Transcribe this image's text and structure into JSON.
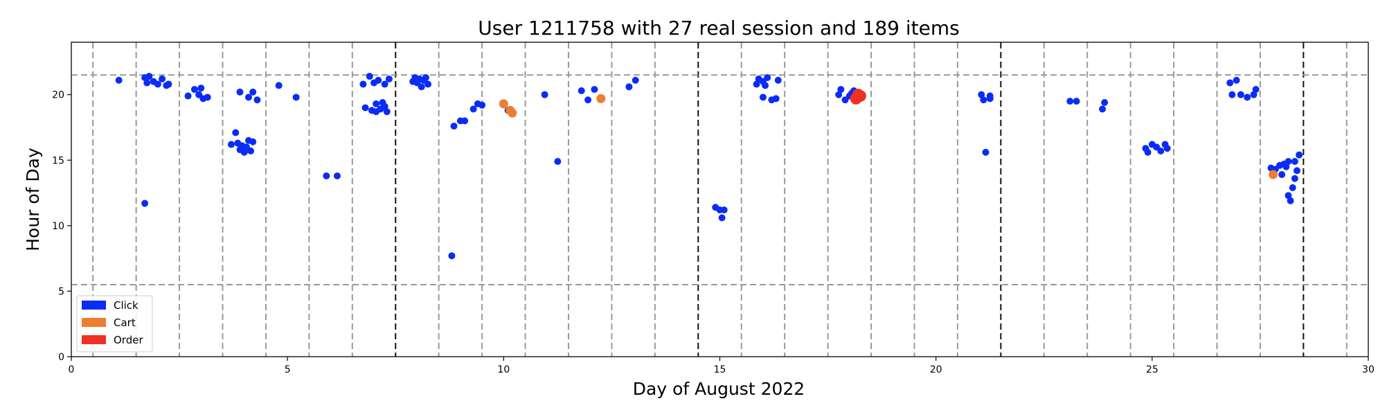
{
  "chart_data": {
    "type": "scatter",
    "title": "User 1211758 with 27 real session and 189 items",
    "xlabel": "Day of August 2022",
    "ylabel": "Hour of Day",
    "xlim": [
      0,
      30
    ],
    "ylim": [
      0,
      24
    ],
    "xticks": [
      0,
      5,
      10,
      15,
      20,
      25,
      30
    ],
    "yticks": [
      0,
      5,
      10,
      15,
      20
    ],
    "grid": false,
    "legend_position": "bottom-left",
    "day_separators": [
      0.5,
      1.5,
      2.5,
      3.5,
      4.5,
      5.5,
      6.5,
      7.5,
      8.5,
      9.5,
      10.5,
      11.5,
      12.5,
      13.5,
      14.5,
      15.5,
      16.5,
      17.5,
      18.5,
      19.5,
      20.5,
      21.5,
      22.5,
      23.5,
      24.5,
      25.5,
      26.5,
      27.5,
      28.5,
      29.5
    ],
    "week_separators": [
      7.5,
      14.5,
      21.5,
      28.5
    ],
    "hour_bounds": [
      5.5,
      21.5
    ],
    "series": [
      {
        "name": "Click",
        "color": "#0b2cf5",
        "points": [
          [
            1.1,
            21.1
          ],
          [
            1.7,
            21.3
          ],
          [
            1.8,
            21.4
          ],
          [
            1.75,
            20.9
          ],
          [
            1.9,
            21.0
          ],
          [
            2.0,
            20.8
          ],
          [
            2.1,
            21.2
          ],
          [
            2.2,
            20.7
          ],
          [
            2.25,
            20.8
          ],
          [
            1.7,
            11.7
          ],
          [
            2.7,
            19.9
          ],
          [
            2.85,
            20.4
          ],
          [
            2.95,
            20.0
          ],
          [
            3.0,
            20.5
          ],
          [
            3.05,
            19.7
          ],
          [
            3.15,
            19.8
          ],
          [
            3.7,
            16.2
          ],
          [
            3.8,
            17.1
          ],
          [
            3.85,
            16.3
          ],
          [
            3.9,
            15.8
          ],
          [
            3.95,
            16.1
          ],
          [
            4.0,
            15.6
          ],
          [
            4.05,
            16.0
          ],
          [
            4.1,
            16.5
          ],
          [
            4.15,
            15.7
          ],
          [
            4.2,
            16.4
          ],
          [
            3.9,
            20.2
          ],
          [
            4.1,
            19.8
          ],
          [
            4.2,
            20.2
          ],
          [
            4.3,
            19.6
          ],
          [
            4.8,
            20.7
          ],
          [
            5.2,
            19.8
          ],
          [
            5.9,
            13.8
          ],
          [
            6.15,
            13.8
          ],
          [
            6.75,
            20.8
          ],
          [
            6.8,
            19.0
          ],
          [
            6.9,
            21.4
          ],
          [
            6.95,
            18.8
          ],
          [
            7.0,
            20.9
          ],
          [
            7.05,
            19.3
          ],
          [
            7.1,
            21.1
          ],
          [
            7.15,
            18.9
          ],
          [
            7.2,
            19.4
          ],
          [
            7.25,
            20.8
          ],
          [
            7.3,
            18.7
          ],
          [
            7.35,
            21.2
          ],
          [
            7.05,
            18.7
          ],
          [
            7.25,
            19.1
          ],
          [
            7.9,
            21.0
          ],
          [
            7.95,
            21.3
          ],
          [
            8.0,
            20.9
          ],
          [
            8.05,
            21.2
          ],
          [
            8.1,
            20.6
          ],
          [
            8.15,
            21.1
          ],
          [
            8.2,
            21.3
          ],
          [
            8.25,
            20.8
          ],
          [
            8.8,
            7.7
          ],
          [
            8.85,
            17.6
          ],
          [
            9.0,
            18.0
          ],
          [
            9.1,
            18.0
          ],
          [
            9.3,
            18.9
          ],
          [
            9.4,
            19.3
          ],
          [
            9.5,
            19.2
          ],
          [
            10.1,
            18.8
          ],
          [
            10.95,
            20.0
          ],
          [
            11.25,
            14.9
          ],
          [
            11.8,
            20.3
          ],
          [
            11.95,
            19.6
          ],
          [
            12.1,
            20.4
          ],
          [
            12.9,
            20.6
          ],
          [
            13.05,
            21.1
          ],
          [
            14.9,
            11.4
          ],
          [
            15.0,
            11.2
          ],
          [
            15.05,
            10.6
          ],
          [
            15.1,
            11.2
          ],
          [
            15.85,
            20.8
          ],
          [
            15.9,
            21.2
          ],
          [
            16.0,
            21.0
          ],
          [
            16.05,
            20.7
          ],
          [
            16.1,
            21.3
          ],
          [
            16.0,
            19.8
          ],
          [
            16.2,
            19.6
          ],
          [
            16.3,
            19.7
          ],
          [
            16.35,
            21.1
          ],
          [
            17.75,
            20.0
          ],
          [
            17.8,
            20.4
          ],
          [
            17.9,
            19.6
          ],
          [
            18.0,
            19.9
          ],
          [
            18.05,
            20.1
          ],
          [
            18.1,
            20.3
          ],
          [
            21.05,
            20.0
          ],
          [
            21.1,
            19.6
          ],
          [
            21.15,
            15.6
          ],
          [
            21.25,
            19.7
          ],
          [
            21.25,
            19.9
          ],
          [
            23.1,
            19.5
          ],
          [
            23.25,
            19.5
          ],
          [
            23.85,
            18.9
          ],
          [
            23.9,
            19.4
          ],
          [
            24.85,
            15.9
          ],
          [
            24.9,
            15.6
          ],
          [
            25.0,
            16.2
          ],
          [
            25.1,
            16.0
          ],
          [
            25.2,
            15.7
          ],
          [
            25.3,
            16.2
          ],
          [
            25.35,
            15.9
          ],
          [
            26.8,
            20.9
          ],
          [
            26.85,
            20.0
          ],
          [
            26.95,
            21.1
          ],
          [
            27.05,
            20.0
          ],
          [
            27.2,
            19.8
          ],
          [
            27.35,
            20.0
          ],
          [
            27.4,
            20.4
          ],
          [
            27.75,
            14.4
          ],
          [
            27.85,
            14.3
          ],
          [
            27.95,
            14.6
          ],
          [
            28.0,
            13.9
          ],
          [
            28.05,
            14.7
          ],
          [
            28.1,
            14.5
          ],
          [
            28.15,
            12.3
          ],
          [
            28.15,
            14.9
          ],
          [
            28.2,
            11.9
          ],
          [
            28.25,
            12.9
          ],
          [
            28.3,
            14.9
          ],
          [
            28.3,
            13.6
          ],
          [
            28.35,
            14.2
          ],
          [
            28.4,
            15.4
          ]
        ]
      },
      {
        "name": "Cart",
        "color": "#ed7d31",
        "points": [
          [
            10.0,
            19.3
          ],
          [
            10.15,
            18.8
          ],
          [
            10.2,
            18.6
          ],
          [
            12.25,
            19.7
          ],
          [
            27.8,
            13.9
          ]
        ]
      },
      {
        "name": "Order",
        "color": "#ee3124",
        "points": [
          [
            18.15,
            19.7
          ],
          [
            18.2,
            20.0
          ],
          [
            18.25,
            19.9
          ]
        ]
      }
    ]
  }
}
